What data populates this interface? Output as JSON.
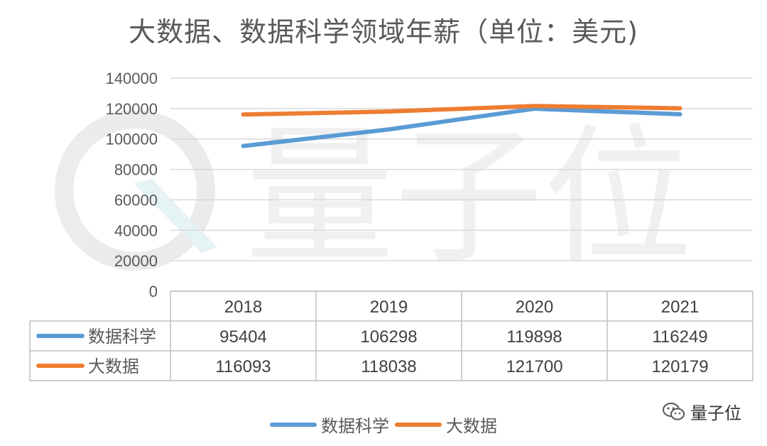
{
  "chart_data": {
    "type": "line",
    "title": "大数据、数据科学领域年薪（单位：美元)",
    "categories": [
      "2018",
      "2019",
      "2020",
      "2021"
    ],
    "series": [
      {
        "name": "数据科学",
        "color": "#5b9bd5",
        "values": [
          95404,
          106298,
          119898,
          116249
        ]
      },
      {
        "name": "大数据",
        "color": "#ed7d31",
        "values": [
          116093,
          118038,
          121700,
          120179
        ]
      }
    ],
    "ylim": [
      0,
      140000
    ],
    "yticks": [
      0,
      20000,
      40000,
      60000,
      80000,
      100000,
      120000,
      140000
    ],
    "grid": true,
    "data_table": true,
    "legend": "bottom"
  },
  "watermark": {
    "text": "量子位",
    "icon": "wechat-icon"
  }
}
